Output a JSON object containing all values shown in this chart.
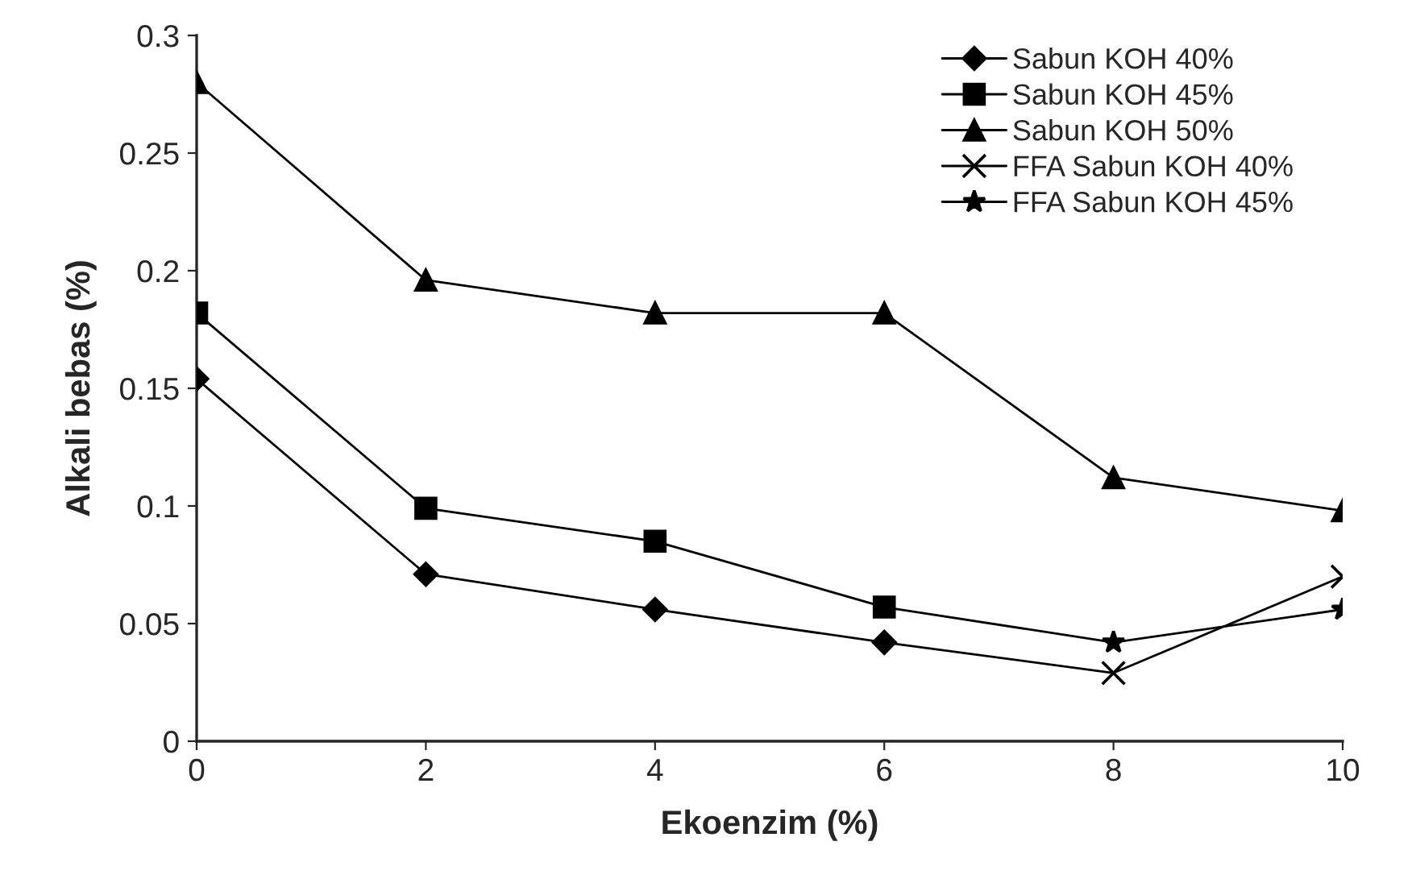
{
  "chart_data": {
    "type": "line",
    "xlabel": "Ekoenzim (%)",
    "ylabel": "Alkali bebas (%)",
    "xlim": [
      0,
      10
    ],
    "xticks": [
      0,
      2,
      4,
      6,
      8,
      10
    ],
    "ylim": [
      0,
      0.3
    ],
    "yticks": [
      0,
      0.05,
      0.1,
      0.15,
      0.2,
      0.25,
      0.3
    ],
    "grid": false,
    "legend": "top right",
    "line_style": "solid",
    "series": [
      {
        "name": "Sabun KOH 40%",
        "color": "#000000",
        "marker": "diamond",
        "x": [
          0,
          2,
          4,
          6
        ],
        "values": [
          0.154,
          0.071,
          0.056,
          0.042
        ]
      },
      {
        "name": "Sabun KOH 45%",
        "color": "#000000",
        "marker": "square",
        "x": [
          0,
          2,
          4,
          6
        ],
        "values": [
          0.182,
          0.099,
          0.085,
          0.057
        ]
      },
      {
        "name": "Sabun KOH 50%",
        "color": "#000000",
        "marker": "triangle",
        "x": [
          0,
          2,
          4,
          6,
          8,
          10
        ],
        "values": [
          0.28,
          0.196,
          0.182,
          0.182,
          0.112,
          0.098
        ]
      },
      {
        "name": "FFA Sabun KOH 40%",
        "color": "#000000",
        "marker": "cross",
        "x": [
          6,
          8,
          10
        ],
        "values": [
          0.042,
          0.029,
          0.07
        ]
      },
      {
        "name": "FFA Sabun KOH 45%",
        "color": "#000000",
        "marker": "star",
        "x": [
          6,
          8,
          10
        ],
        "values": [
          0.057,
          0.042,
          0.056
        ]
      }
    ]
  }
}
